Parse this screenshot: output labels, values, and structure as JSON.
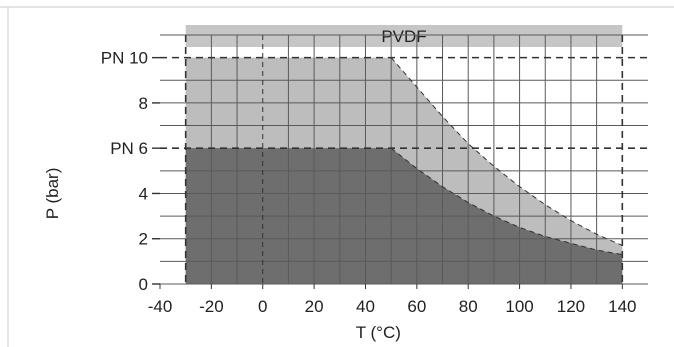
{
  "chart_data": {
    "type": "area",
    "title": "PVDF",
    "xlabel": "T (°C)",
    "ylabel": "P (bar)",
    "xlim": [
      -40,
      150
    ],
    "ylim": [
      0,
      11
    ],
    "x_ticks": [
      -40,
      -20,
      0,
      20,
      40,
      60,
      80,
      100,
      120,
      140
    ],
    "x_tick_labels": [
      "-40",
      "-20",
      "0",
      "20",
      "40",
      "60",
      "80",
      "100",
      "120",
      "140"
    ],
    "y_ticks": [
      0,
      2,
      4,
      6,
      8,
      10
    ],
    "y_tick_labels": [
      "0",
      "2",
      "4",
      "PN 6",
      "8",
      "PN 10"
    ],
    "temperature_range": [
      -30,
      140
    ],
    "grid": true,
    "series": [
      {
        "name": "PN 10",
        "color": "#bdbdbd",
        "x": [
          -30,
          50,
          60,
          70,
          80,
          90,
          100,
          110,
          120,
          130,
          140
        ],
        "y": [
          10,
          10,
          8.7,
          7.4,
          6.2,
          5.2,
          4.3,
          3.5,
          2.8,
          2.2,
          1.7
        ]
      },
      {
        "name": "PN 6",
        "color": "#6e6e6e",
        "x": [
          -30,
          50,
          60,
          70,
          80,
          90,
          100,
          110,
          120,
          130,
          140
        ],
        "y": [
          6,
          6,
          5.1,
          4.3,
          3.6,
          3.0,
          2.5,
          2.1,
          1.8,
          1.5,
          1.3
        ]
      }
    ],
    "banner_color": "#c6c6c6",
    "frame_color": "#c8c8c8"
  }
}
